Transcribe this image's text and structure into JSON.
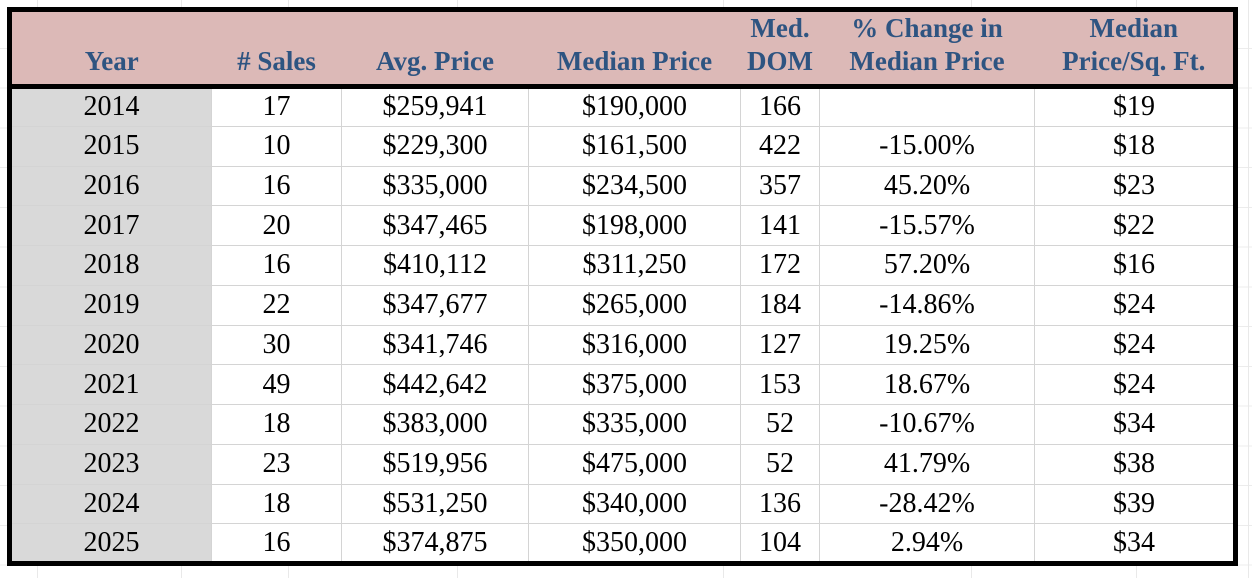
{
  "colors": {
    "header_background": "#dcb9b7",
    "header_text": "#2e5481",
    "year_column_background": "#d9d9d9",
    "table_border": "#000000",
    "gridline": "#d4d4d4",
    "data_text": "#000000"
  },
  "table": {
    "columns": [
      {
        "id": "year",
        "line1": "",
        "line2": "Year"
      },
      {
        "id": "sales",
        "line1": "",
        "line2": "# Sales"
      },
      {
        "id": "avg-price",
        "line1": "",
        "line2": "Avg. Price"
      },
      {
        "id": "median-price",
        "line1": "",
        "line2": "Median Price"
      },
      {
        "id": "med-dom",
        "line1": "Med.",
        "line2": "DOM"
      },
      {
        "id": "pct-change",
        "line1": "% Change in",
        "line2": "Median Price"
      },
      {
        "id": "price-sqft",
        "line1": "Median",
        "line2": "Price/Sq. Ft."
      }
    ],
    "rows": [
      [
        "2014",
        "17",
        "$259,941",
        "$190,000",
        "166",
        "",
        "$19"
      ],
      [
        "2015",
        "10",
        "$229,300",
        "$161,500",
        "422",
        "-15.00%",
        "$18"
      ],
      [
        "2016",
        "16",
        "$335,000",
        "$234,500",
        "357",
        "45.20%",
        "$23"
      ],
      [
        "2017",
        "20",
        "$347,465",
        "$198,000",
        "141",
        "-15.57%",
        "$22"
      ],
      [
        "2018",
        "16",
        "$410,112",
        "$311,250",
        "172",
        "57.20%",
        "$16"
      ],
      [
        "2019",
        "22",
        "$347,677",
        "$265,000",
        "184",
        "-14.86%",
        "$24"
      ],
      [
        "2020",
        "30",
        "$341,746",
        "$316,000",
        "127",
        "19.25%",
        "$24"
      ],
      [
        "2021",
        "49",
        "$442,642",
        "$375,000",
        "153",
        "18.67%",
        "$24"
      ],
      [
        "2022",
        "18",
        "$383,000",
        "$335,000",
        "52",
        "-10.67%",
        "$34"
      ],
      [
        "2023",
        "23",
        "$519,956",
        "$475,000",
        "52",
        "41.79%",
        "$38"
      ],
      [
        "2024",
        "18",
        "$531,250",
        "$340,000",
        "136",
        "-28.42%",
        "$39"
      ],
      [
        "2025",
        "16",
        "$374,875",
        "$350,000",
        "104",
        "2.94%",
        "$34"
      ]
    ]
  }
}
